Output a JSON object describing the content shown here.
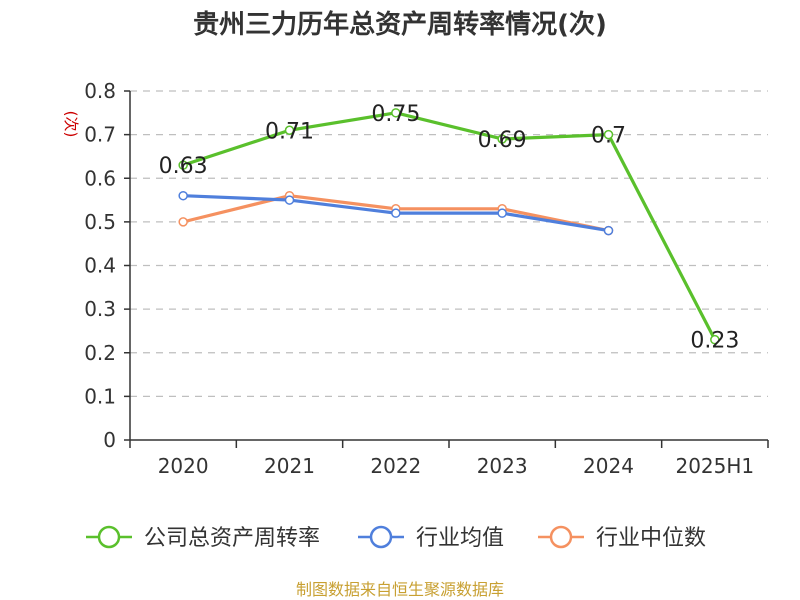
{
  "chart_data": {
    "type": "line",
    "title": "贵州三力历年总资产周转率情况(次)",
    "ylabel": "(次)",
    "categories": [
      "2020",
      "2021",
      "2022",
      "2023",
      "2024",
      "2025H1"
    ],
    "ylim": [
      0,
      0.8
    ],
    "yticks": [
      "0",
      "0.1",
      "0.2",
      "0.3",
      "0.4",
      "0.5",
      "0.6",
      "0.7",
      "0.8"
    ],
    "grid": true,
    "legend_position": "bottom",
    "series": [
      {
        "name": "公司总资产周转率",
        "color": "#5ac02c",
        "values": [
          0.63,
          0.71,
          0.75,
          0.69,
          0.7,
          0.23
        ],
        "labels": [
          "0.63",
          "0.71",
          "0.75",
          "0.69",
          "0.7",
          "0.23"
        ]
      },
      {
        "name": "行业均值",
        "color": "#4f7fdc",
        "values": [
          0.56,
          0.55,
          0.52,
          0.52,
          0.48,
          null
        ]
      },
      {
        "name": "行业中位数",
        "color": "#f59160",
        "values": [
          0.5,
          0.56,
          0.53,
          0.53,
          0.48,
          null
        ]
      }
    ]
  },
  "source": "制图数据来自恒生聚源数据库"
}
